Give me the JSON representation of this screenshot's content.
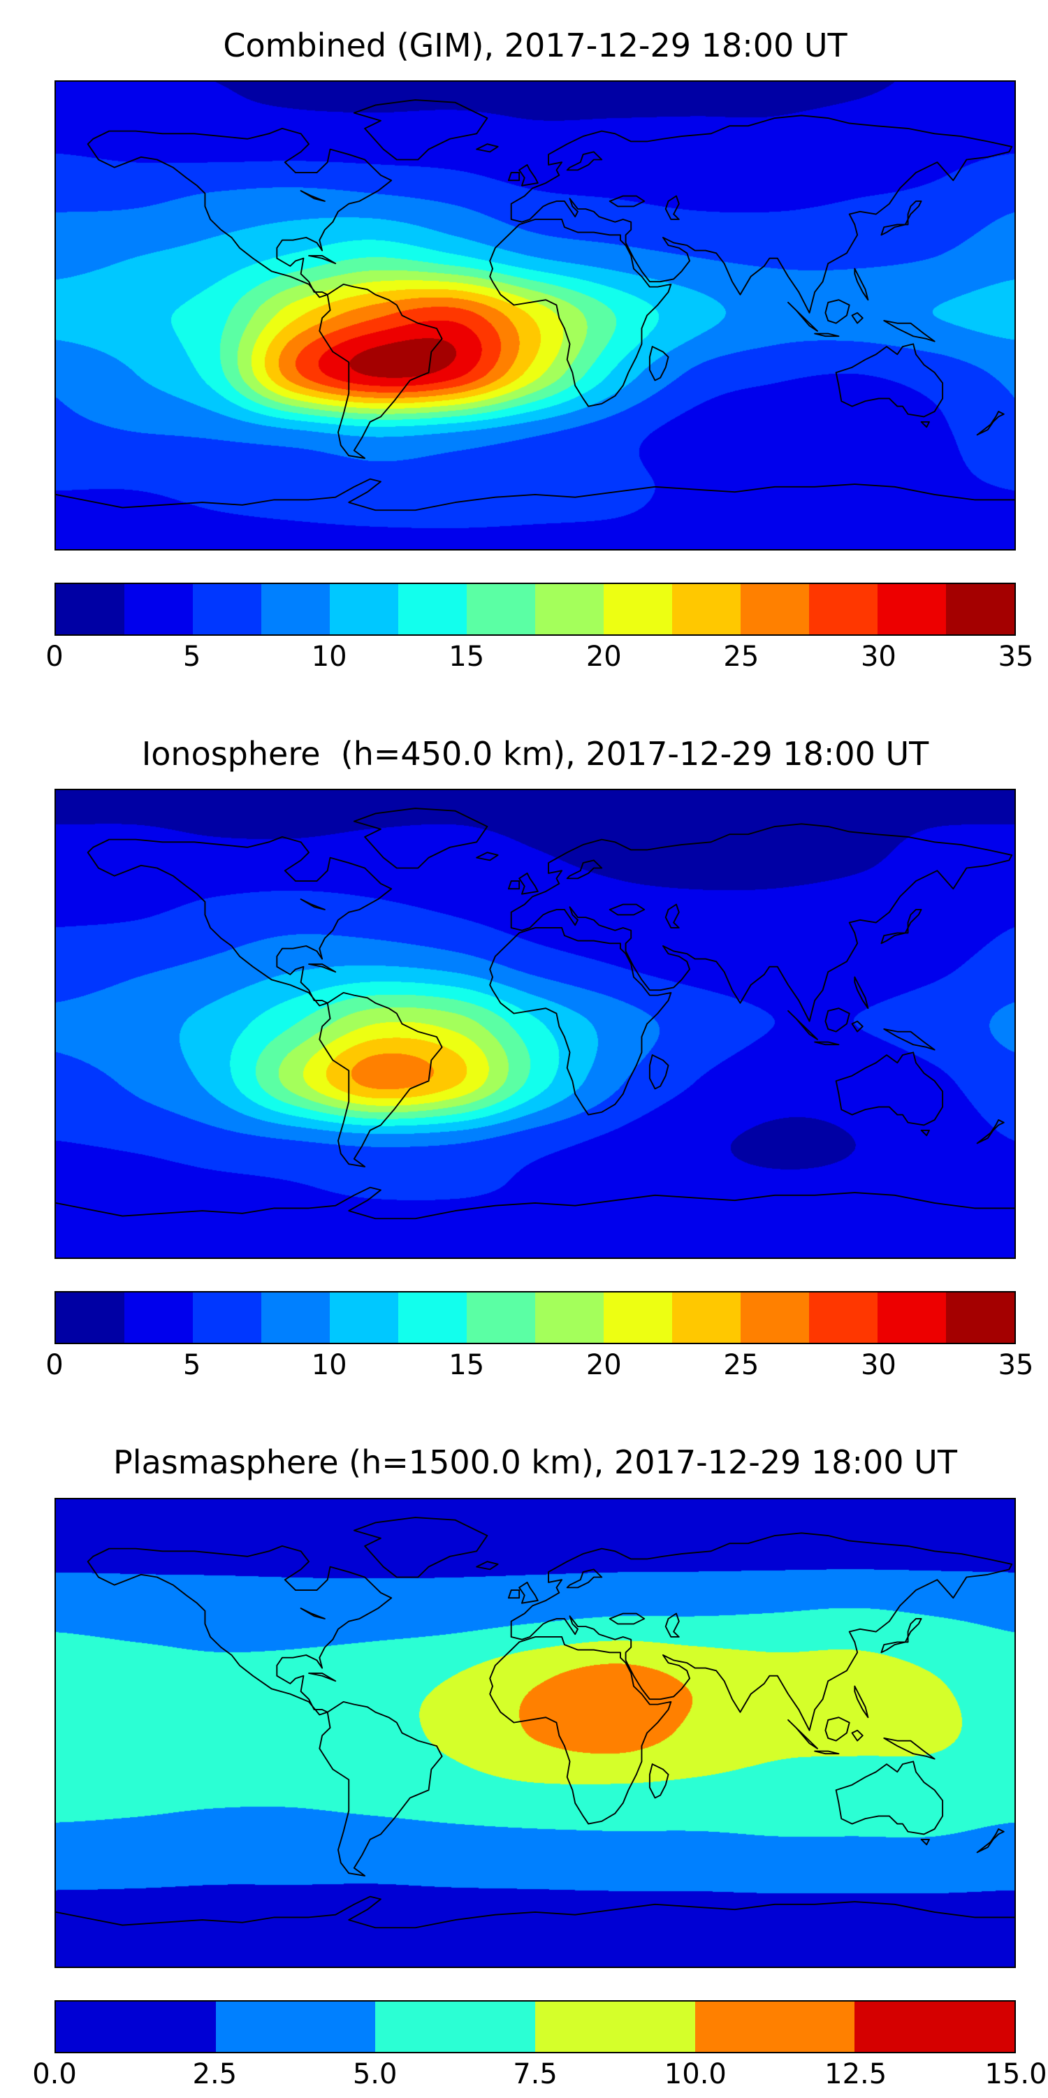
{
  "figure": {
    "background": "#ffffff",
    "accent_colors": {
      "coastline": "#000000",
      "frame": "#000000",
      "min_color": "#000080",
      "max_color": "#800000"
    },
    "panels": [
      {
        "title": "Combined (GIM), 2017-12-29 18:00 UT",
        "colorbar": {
          "vmin": 0,
          "vmax": 35,
          "step": 2.5,
          "ticks": [
            "0",
            "5",
            "10",
            "15",
            "20",
            "25",
            "30",
            "35"
          ]
        }
      },
      {
        "title": "Ionosphere  (h=450.0 km), 2017-12-29 18:00 UT",
        "colorbar": {
          "vmin": 0,
          "vmax": 35,
          "step": 2.5,
          "ticks": [
            "0",
            "5",
            "10",
            "15",
            "20",
            "25",
            "30",
            "35"
          ]
        }
      },
      {
        "title": "Plasmasphere (h=1500.0 km), 2017-12-29 18:00 UT",
        "colorbar": {
          "vmin": 0,
          "vmax": 15,
          "step": 2.5,
          "ticks": [
            "0.0",
            "2.5",
            "5.0",
            "7.5",
            "10.0",
            "12.5",
            "15.0"
          ]
        }
      }
    ]
  },
  "chart_data": [
    {
      "type": "heatmap",
      "title": "Combined (GIM), 2017-12-29 18:00 UT",
      "colormap": "jet",
      "projection": "equirectangular",
      "vmin": 0,
      "vmax": 35,
      "level_step": 2.5,
      "colorbar_ticks": [
        "0",
        "5",
        "10",
        "15",
        "20",
        "25",
        "30",
        "35"
      ],
      "lon": [
        -180,
        -150,
        -120,
        -90,
        -60,
        -30,
        0,
        30,
        60,
        90,
        120,
        150,
        180
      ],
      "lat": [
        90,
        67.5,
        45,
        22.5,
        0,
        -22.5,
        -45,
        -67.5,
        -90
      ],
      "values": [
        [
          3,
          2.8,
          2.5,
          2.2,
          2,
          2,
          2,
          2,
          2,
          2,
          2.2,
          2.8,
          3
        ],
        [
          4.5,
          4,
          3.5,
          3.5,
          3.5,
          3.5,
          3,
          3,
          3,
          3,
          3.5,
          4,
          4.5
        ],
        [
          7,
          7,
          8,
          8.5,
          8,
          7,
          5.5,
          5,
          4.5,
          4.5,
          5,
          5.5,
          7
        ],
        [
          9,
          10,
          11,
          13,
          15,
          13,
          10,
          8.5,
          7.5,
          7,
          7,
          7.5,
          9
        ],
        [
          11,
          12,
          14,
          22,
          27,
          29,
          22,
          15,
          11,
          9,
          9,
          10,
          11
        ],
        [
          8,
          10,
          14,
          27,
          33,
          31,
          21,
          12,
          7,
          5.5,
          5,
          6,
          8
        ],
        [
          7,
          7.5,
          8,
          9.5,
          11,
          10,
          8,
          6,
          4,
          3,
          3.5,
          4.5,
          7
        ],
        [
          5,
          5,
          5.5,
          6,
          6.5,
          6.5,
          6,
          5.5,
          4.5,
          4,
          4,
          4.5,
          5
        ],
        [
          4.5,
          4.5,
          4.5,
          4.5,
          4.5,
          4.5,
          4.5,
          4.5,
          4.5,
          4.5,
          4.5,
          4.5,
          4.5
        ]
      ]
    },
    {
      "type": "heatmap",
      "title": "Ionosphere  (h=450.0 km), 2017-12-29 18:00 UT",
      "colormap": "jet",
      "projection": "equirectangular",
      "vmin": 0,
      "vmax": 35,
      "level_step": 2.5,
      "colorbar_ticks": [
        "0",
        "5",
        "10",
        "15",
        "20",
        "25",
        "30",
        "35"
      ],
      "lon": [
        -180,
        -150,
        -120,
        -90,
        -60,
        -30,
        0,
        30,
        60,
        90,
        120,
        150,
        180
      ],
      "lat": [
        90,
        67.5,
        45,
        22.5,
        0,
        -22.5,
        -45,
        -67.5,
        -90
      ],
      "values": [
        [
          2,
          2,
          2,
          2,
          2,
          2,
          2,
          2,
          2,
          2,
          2,
          2,
          2
        ],
        [
          3,
          3,
          2.8,
          2.8,
          3,
          3,
          2.5,
          2.2,
          2,
          2,
          2.2,
          2.8,
          3
        ],
        [
          4.5,
          4.5,
          5.5,
          6,
          5.5,
          4.5,
          3.5,
          3,
          2.8,
          2.8,
          3,
          3.2,
          4.5
        ],
        [
          6,
          7,
          8,
          9.5,
          10,
          9,
          6.5,
          5,
          4,
          3.8,
          4,
          4.5,
          6
        ],
        [
          8,
          9,
          11,
          15,
          20,
          19,
          13,
          9,
          6.5,
          5,
          5,
          6,
          8
        ],
        [
          6.5,
          8,
          11,
          19,
          26,
          23,
          14,
          8,
          5,
          3.5,
          3.5,
          4.5,
          6.5
        ],
        [
          5,
          5.5,
          6.5,
          7.5,
          8.5,
          8,
          6,
          4.5,
          3,
          2.2,
          2.5,
          3.5,
          5
        ],
        [
          3.5,
          3.5,
          4,
          4.5,
          5,
          5,
          4.5,
          4,
          3.2,
          3,
          3,
          3.2,
          3.5
        ],
        [
          3,
          3,
          3,
          3,
          3,
          3,
          3,
          3,
          3,
          3,
          3,
          3,
          3
        ]
      ]
    },
    {
      "type": "heatmap",
      "title": "Plasmasphere (h=1500.0 km), 2017-12-29 18:00 UT",
      "colormap": "jet",
      "projection": "equirectangular",
      "vmin": 0,
      "vmax": 15,
      "level_step": 2.5,
      "colorbar_ticks": [
        "0.0",
        "2.5",
        "5.0",
        "7.5",
        "10.0",
        "12.5",
        "15.0"
      ],
      "lon": [
        -180,
        -150,
        -120,
        -90,
        -60,
        -30,
        0,
        30,
        60,
        90,
        120,
        150,
        180
      ],
      "lat": [
        90,
        67.5,
        45,
        22.5,
        0,
        -22.5,
        -45,
        -67.5,
        -90
      ],
      "values": [
        [
          1.5,
          1.5,
          1.5,
          1.5,
          1.5,
          1.5,
          1.5,
          1.5,
          1.5,
          1.5,
          1.5,
          1.5,
          1.5
        ],
        [
          2,
          2,
          2,
          2,
          2,
          2,
          2,
          2,
          2,
          2,
          2,
          2,
          2
        ],
        [
          4.5,
          4.2,
          4,
          3.8,
          3.8,
          4,
          4.5,
          5,
          5,
          5.2,
          5.5,
          5,
          4.5
        ],
        [
          6,
          5.8,
          5.5,
          5.8,
          6.5,
          7.5,
          9.5,
          10.8,
          9.5,
          8.5,
          8.5,
          7.5,
          6
        ],
        [
          6.8,
          6.5,
          6.2,
          6.5,
          7,
          8,
          10.2,
          11.2,
          9.5,
          8.2,
          8,
          7.8,
          6.8
        ],
        [
          6,
          5.8,
          5.5,
          5.5,
          6,
          6.5,
          7,
          7,
          6.8,
          6.5,
          6.5,
          6.5,
          6
        ],
        [
          4,
          3.8,
          3.5,
          3.5,
          3.5,
          3.8,
          4,
          4.2,
          4.2,
          4.5,
          4.5,
          4.5,
          4
        ],
        [
          2,
          2,
          2,
          2,
          2,
          2,
          2,
          2,
          2,
          2,
          2,
          2,
          2
        ],
        [
          1.5,
          1.5,
          1.5,
          1.5,
          1.5,
          1.5,
          1.5,
          1.5,
          1.5,
          1.5,
          1.5,
          1.5,
          1.5
        ]
      ]
    }
  ]
}
